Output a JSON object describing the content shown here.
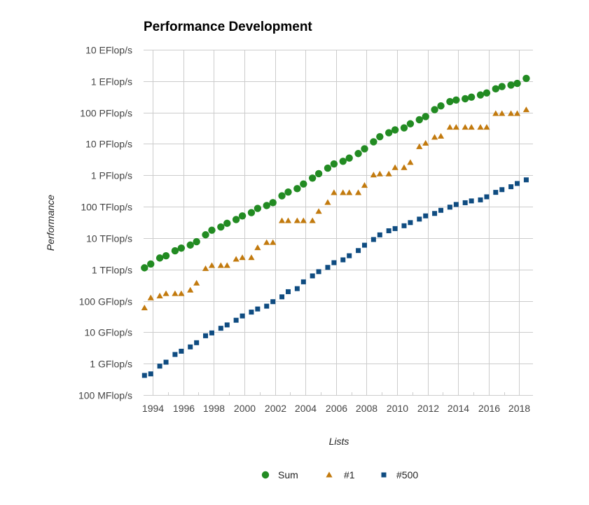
{
  "chart_data": {
    "type": "scatter",
    "title": "Performance Development",
    "xlabel": "Lists",
    "ylabel": "Performance",
    "yscale": "log",
    "yunit": "GFlop/s",
    "ylim": [
      0.1,
      10000000000
    ],
    "xlim": [
      1993.4,
      2018.9
    ],
    "grid": true,
    "legend_position": "bottom",
    "y_ticks": [
      {
        "value": 10000000000,
        "label": "10 EFlop/s"
      },
      {
        "value": 1000000000,
        "label": "1 EFlop/s"
      },
      {
        "value": 100000000,
        "label": "100 PFlop/s"
      },
      {
        "value": 10000000,
        "label": "10 PFlop/s"
      },
      {
        "value": 1000000,
        "label": "1 PFlop/s"
      },
      {
        "value": 100000,
        "label": "100 TFlop/s"
      },
      {
        "value": 10000,
        "label": "10 TFlop/s"
      },
      {
        "value": 1000,
        "label": "1 TFlop/s"
      },
      {
        "value": 100,
        "label": "100 GFlop/s"
      },
      {
        "value": 10,
        "label": "10 GFlop/s"
      },
      {
        "value": 1,
        "label": "1 GFlop/s"
      },
      {
        "value": 0.1,
        "label": "100 MFlop/s"
      }
    ],
    "x_ticks": [
      {
        "value": 1994,
        "label": "1994"
      },
      {
        "value": 1996,
        "label": "1996"
      },
      {
        "value": 1998,
        "label": "1998"
      },
      {
        "value": 2000,
        "label": "2000"
      },
      {
        "value": 2002,
        "label": "2002"
      },
      {
        "value": 2004,
        "label": "2004"
      },
      {
        "value": 2006,
        "label": "2006"
      },
      {
        "value": 2008,
        "label": "2008"
      },
      {
        "value": 2010,
        "label": "2010"
      },
      {
        "value": 2012,
        "label": "2012"
      },
      {
        "value": 2014,
        "label": "2014"
      },
      {
        "value": 2016,
        "label": "2016"
      },
      {
        "value": 2018,
        "label": "2018"
      }
    ],
    "x_minor_ticks": [
      1995,
      1997,
      1999,
      2001,
      2003,
      2005,
      2007,
      2009,
      2011,
      2013,
      2015,
      2017
    ],
    "x": [
      1993.46,
      1993.87,
      1994.46,
      1994.87,
      1995.46,
      1995.87,
      1996.46,
      1996.87,
      1997.46,
      1997.87,
      1998.46,
      1998.87,
      1999.46,
      1999.87,
      2000.46,
      2000.87,
      2001.46,
      2001.87,
      2002.46,
      2002.87,
      2003.46,
      2003.87,
      2004.46,
      2004.87,
      2005.46,
      2005.87,
      2006.46,
      2006.87,
      2007.46,
      2007.87,
      2008.46,
      2008.87,
      2009.46,
      2009.87,
      2010.46,
      2010.87,
      2011.46,
      2011.87,
      2012.46,
      2012.87,
      2013.46,
      2013.87,
      2014.46,
      2014.87,
      2015.46,
      2015.87,
      2016.46,
      2016.87,
      2017.46,
      2017.87,
      2018.46
    ],
    "series": [
      {
        "name": "Sum",
        "marker": "circle",
        "color": "#228b22",
        "values": [
          1128.6,
          1493.4,
          2317,
          2732,
          3927,
          4784,
          5990,
          7670,
          12700,
          17800,
          22600,
          29500,
          38900,
          50800,
          64800,
          88100,
          108800,
          134300,
          222200,
          293200,
          375900,
          528000,
          813100,
          1127000,
          1690000,
          2301000,
          2792000,
          3537000,
          4920000,
          6970000,
          11700000,
          16950000,
          22600000,
          27950000,
          32430000,
          43700000,
          58930000,
          74150000,
          123400000,
          162100000,
          223000000,
          250100000,
          274100000,
          309000000,
          363000000,
          420000000,
          567000000,
          672000000,
          749000000,
          845000000,
          1220000000
        ]
      },
      {
        "name": "#1",
        "marker": "triangle",
        "color": "#c27a0e",
        "values": [
          59.7,
          124.5,
          143.4,
          170,
          170,
          170,
          220.4,
          368.2,
          1068,
          1338,
          1338,
          1338,
          2121,
          2379,
          2379,
          4938,
          7226,
          7226,
          35860,
          35860,
          35860,
          35860,
          35860,
          70720,
          136800,
          280600,
          280600,
          280600,
          280600,
          478200,
          1026000,
          1105000,
          1105000,
          1759000,
          1759000,
          2566000,
          8162000,
          10510000,
          16320000,
          17590000,
          33860000,
          33860000,
          33860000,
          33860000,
          33860000,
          33860000,
          93010000,
          93010000,
          93010000,
          93010000,
          122300000
        ]
      },
      {
        "name": "#500",
        "marker": "square",
        "color": "#0f4c81",
        "values": [
          0.4218,
          0.4722,
          0.8343,
          1.114,
          1.962,
          2.489,
          3.409,
          4.643,
          7.723,
          9.513,
          13.39,
          17.12,
          24.14,
          33.06,
          43.82,
          55.13,
          67.78,
          94.3,
          134.3,
          196.0,
          245.1,
          403.4,
          624,
          851.3,
          1166,
          1645,
          2026,
          2737,
          4005,
          5929,
          9000,
          12640,
          17090,
          20050,
          24670,
          31120,
          40190,
          50940,
          60820,
          76500,
          96620,
          117800,
          133700,
          152500,
          164700,
          206300,
          286100,
          349300,
          432200,
          548300,
          715600
        ]
      }
    ]
  }
}
